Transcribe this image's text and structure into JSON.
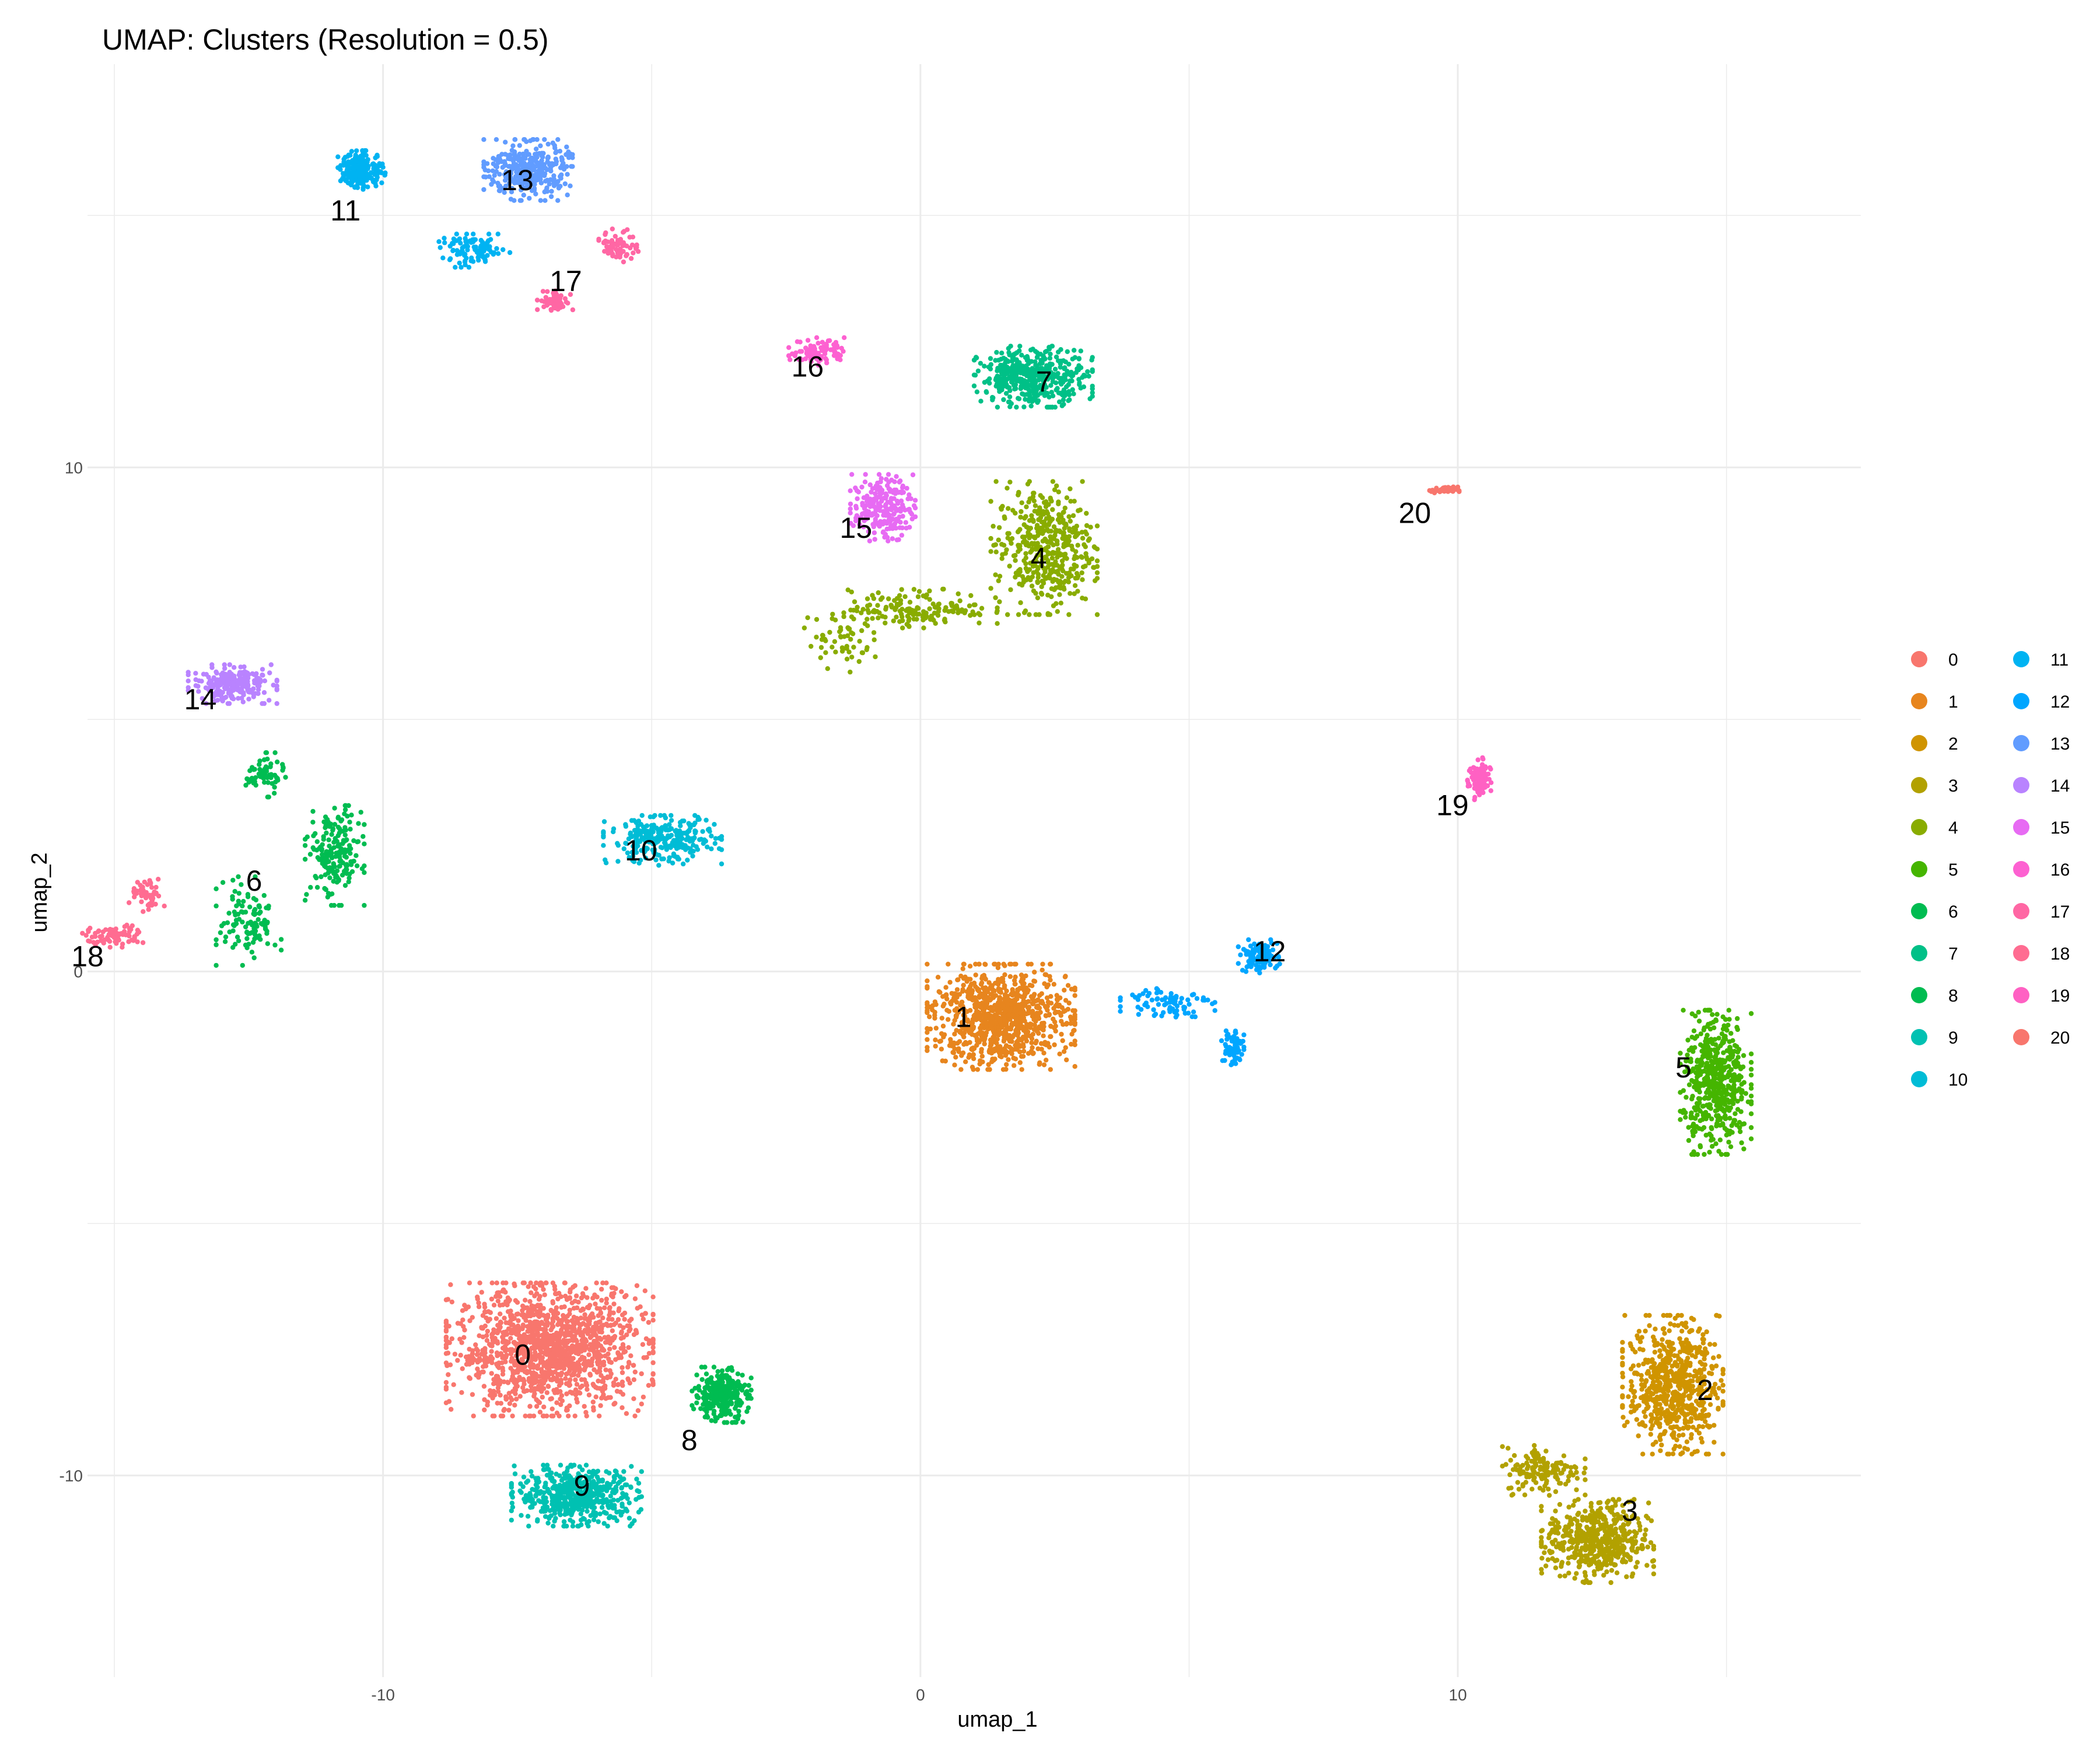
{
  "chart_data": {
    "type": "scatter",
    "title": "UMAP: Clusters (Resolution = 0.5)",
    "xlabel": "umap_1",
    "ylabel": "umap_2",
    "xlim": [
      -15.5,
      17.5
    ],
    "ylim": [
      -14,
      18
    ],
    "x_ticks": [
      -10,
      0,
      10
    ],
    "y_ticks": [
      -10,
      0,
      10
    ],
    "grid": true,
    "legend_position": "right",
    "legend_columns": 2,
    "clusters": [
      {
        "name": "0",
        "color": "#F8766D",
        "label_pos": [
          -7.4,
          -7.8
        ],
        "blobs": [
          {
            "x": -6.9,
            "y": -7.5,
            "sx": 1.75,
            "sy": 1.2,
            "n": 1400
          }
        ]
      },
      {
        "name": "1",
        "color": "#E7851E",
        "label_pos": [
          0.8,
          -1.1
        ],
        "blobs": [
          {
            "x": 1.5,
            "y": -0.9,
            "sx": 1.25,
            "sy": 0.95,
            "n": 900
          }
        ]
      },
      {
        "name": "2",
        "color": "#D09400",
        "label_pos": [
          14.6,
          -8.5
        ],
        "blobs": [
          {
            "x": 14.0,
            "y": -8.2,
            "sx": 0.85,
            "sy": 1.25,
            "n": 650
          }
        ]
      },
      {
        "name": "3",
        "color": "#B2A100",
        "label_pos": [
          13.2,
          -10.9
        ],
        "blobs": [
          {
            "x": 12.6,
            "y": -11.3,
            "sx": 0.95,
            "sy": 0.75,
            "n": 520
          },
          {
            "x": 11.6,
            "y": -9.9,
            "sx": 0.7,
            "sy": 0.45,
            "n": 150
          }
        ]
      },
      {
        "name": "4",
        "color": "#89AC00",
        "label_pos": [
          2.2,
          8.0
        ],
        "blobs": [
          {
            "x": 2.3,
            "y": 8.4,
            "sx": 0.9,
            "sy": 1.2,
            "n": 450
          },
          {
            "x": 0.0,
            "y": 7.2,
            "sx": 1.3,
            "sy": 0.35,
            "n": 160
          },
          {
            "x": -1.5,
            "y": 6.6,
            "sx": 0.6,
            "sy": 0.6,
            "n": 60
          }
        ]
      },
      {
        "name": "5",
        "color": "#45B500",
        "label_pos": [
          14.2,
          -2.1
        ],
        "blobs": [
          {
            "x": 14.8,
            "y": -2.2,
            "sx": 0.6,
            "sy": 1.3,
            "n": 520
          }
        ]
      },
      {
        "name": "6",
        "color": "#00BC51",
        "label_pos": [
          -12.4,
          1.6
        ],
        "blobs": [
          {
            "x": -10.9,
            "y": 2.3,
            "sx": 0.5,
            "sy": 0.9,
            "n": 200
          },
          {
            "x": -12.5,
            "y": 1.0,
            "sx": 0.55,
            "sy": 0.8,
            "n": 110
          },
          {
            "x": -12.2,
            "y": 3.9,
            "sx": 0.35,
            "sy": 0.4,
            "n": 60
          }
        ]
      },
      {
        "name": "7",
        "color": "#00C087",
        "label_pos": [
          2.3,
          11.5
        ],
        "blobs": [
          {
            "x": 2.1,
            "y": 11.8,
            "sx": 1.0,
            "sy": 0.55,
            "n": 420
          }
        ]
      },
      {
        "name": "8",
        "color": "#00BC51",
        "label_pos": [
          -4.3,
          -9.5
        ],
        "blobs": [
          {
            "x": -3.7,
            "y": -8.4,
            "sx": 0.5,
            "sy": 0.5,
            "n": 280
          }
        ]
      },
      {
        "name": "9",
        "color": "#00C1B2",
        "label_pos": [
          -6.3,
          -10.4
        ],
        "blobs": [
          {
            "x": -6.4,
            "y": -10.4,
            "sx": 1.1,
            "sy": 0.55,
            "n": 540
          }
        ]
      },
      {
        "name": "10",
        "color": "#00BCD6",
        "label_pos": [
          -5.2,
          2.2
        ],
        "blobs": [
          {
            "x": -4.8,
            "y": 2.6,
            "sx": 1.0,
            "sy": 0.45,
            "n": 280
          }
        ]
      },
      {
        "name": "11",
        "color": "#00B3F2",
        "label_pos": [
          -10.7,
          14.9
        ],
        "blobs": [
          {
            "x": -10.4,
            "y": 15.9,
            "sx": 0.4,
            "sy": 0.35,
            "n": 200
          },
          {
            "x": -8.3,
            "y": 14.3,
            "sx": 0.6,
            "sy": 0.3,
            "n": 100
          }
        ]
      },
      {
        "name": "12",
        "color": "#00A6FF",
        "label_pos": [
          6.5,
          0.2
        ],
        "blobs": [
          {
            "x": 6.3,
            "y": 0.3,
            "sx": 0.35,
            "sy": 0.3,
            "n": 100
          },
          {
            "x": 4.6,
            "y": -0.6,
            "sx": 0.8,
            "sy": 0.3,
            "n": 80
          },
          {
            "x": 5.8,
            "y": -1.5,
            "sx": 0.2,
            "sy": 0.4,
            "n": 70
          }
        ]
      },
      {
        "name": "13",
        "color": "#619CFF",
        "label_pos": [
          -7.5,
          15.5
        ],
        "blobs": [
          {
            "x": -7.3,
            "y": 15.9,
            "sx": 0.75,
            "sy": 0.55,
            "n": 340
          }
        ]
      },
      {
        "name": "14",
        "color": "#B983FF",
        "label_pos": [
          -13.4,
          5.2
        ],
        "blobs": [
          {
            "x": -12.8,
            "y": 5.7,
            "sx": 0.75,
            "sy": 0.35,
            "n": 230
          }
        ]
      },
      {
        "name": "15",
        "color": "#E76BF3",
        "label_pos": [
          -1.2,
          8.6
        ],
        "blobs": [
          {
            "x": -0.7,
            "y": 9.2,
            "sx": 0.55,
            "sy": 0.6,
            "n": 220
          }
        ]
      },
      {
        "name": "16",
        "color": "#FD61D1",
        "label_pos": [
          -2.1,
          11.8
        ],
        "blobs": [
          {
            "x": -1.9,
            "y": 12.3,
            "sx": 0.5,
            "sy": 0.25,
            "n": 90
          }
        ]
      },
      {
        "name": "17",
        "color": "#FF67A4",
        "label_pos": [
          -6.6,
          13.5
        ],
        "blobs": [
          {
            "x": -5.6,
            "y": 14.4,
            "sx": 0.35,
            "sy": 0.3,
            "n": 70
          },
          {
            "x": -6.8,
            "y": 13.3,
            "sx": 0.3,
            "sy": 0.2,
            "n": 60
          }
        ]
      },
      {
        "name": "18",
        "color": "#FF6C91",
        "label_pos": [
          -15.5,
          0.1
        ],
        "blobs": [
          {
            "x": -15.0,
            "y": 0.7,
            "sx": 0.55,
            "sy": 0.2,
            "n": 80
          },
          {
            "x": -14.4,
            "y": 1.5,
            "sx": 0.3,
            "sy": 0.3,
            "n": 50
          }
        ]
      },
      {
        "name": "19",
        "color": "#FF61C3",
        "label_pos": [
          9.9,
          3.1
        ],
        "blobs": [
          {
            "x": 10.4,
            "y": 3.8,
            "sx": 0.2,
            "sy": 0.4,
            "n": 100
          }
        ]
      },
      {
        "name": "20",
        "color": "#F8766D",
        "label_pos": [
          9.2,
          8.9
        ],
        "blobs": [
          {
            "x": 9.75,
            "y": 9.55,
            "sx": 0.25,
            "sy": 0.06,
            "n": 40
          }
        ]
      }
    ]
  }
}
